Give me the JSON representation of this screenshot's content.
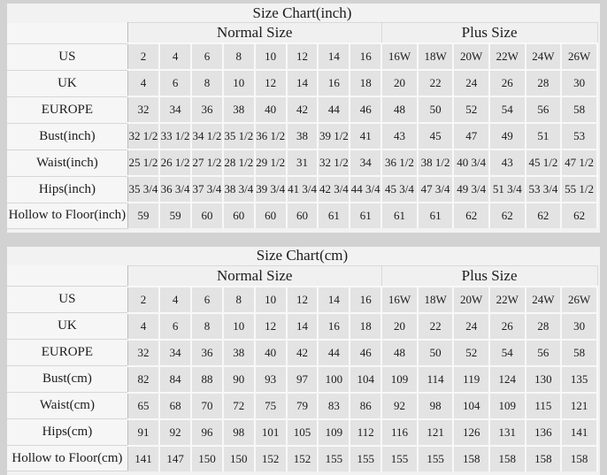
{
  "colors": {
    "page_bg": "#d2d2d2",
    "panel_bg": "#f2f2f2",
    "cell_bg": "#e3e3e3",
    "label_bg": "#f6f6f6",
    "text": "#1c1c1c"
  },
  "chart_data": [
    {
      "type": "table",
      "title": "Size Chart(inch)",
      "column_groups": [
        {
          "label": "",
          "span": 1
        },
        {
          "label": "Normal Size",
          "span": 8
        },
        {
          "label": "Plus Size",
          "span": 6
        }
      ],
      "rows": [
        {
          "label": "US",
          "values": [
            "2",
            "4",
            "6",
            "8",
            "10",
            "12",
            "14",
            "16",
            "16W",
            "18W",
            "20W",
            "22W",
            "24W",
            "26W"
          ]
        },
        {
          "label": "UK",
          "values": [
            "4",
            "6",
            "8",
            "10",
            "12",
            "14",
            "16",
            "18",
            "20",
            "22",
            "24",
            "26",
            "28",
            "30"
          ]
        },
        {
          "label": "EUROPE",
          "values": [
            "32",
            "34",
            "36",
            "38",
            "40",
            "42",
            "44",
            "46",
            "48",
            "50",
            "52",
            "54",
            "56",
            "58"
          ]
        },
        {
          "label": "Bust(inch)",
          "values": [
            "32 1/2",
            "33 1/2",
            "34 1/2",
            "35 1/2",
            "36 1/2",
            "38",
            "39 1/2",
            "41",
            "43",
            "45",
            "47",
            "49",
            "51",
            "53"
          ]
        },
        {
          "label": "Waist(inch)",
          "values": [
            "25 1/2",
            "26 1/2",
            "27 1/2",
            "28 1/2",
            "29 1/2",
            "31",
            "32 1/2",
            "34",
            "36 1/2",
            "38 1/2",
            "40 3/4",
            "43",
            "45 1/2",
            "47 1/2"
          ]
        },
        {
          "label": "Hips(inch)",
          "values": [
            "35 3/4",
            "36 3/4",
            "37 3/4",
            "38 3/4",
            "39 3/4",
            "41 3/4",
            "42 3/4",
            "44 3/4",
            "45 3/4",
            "47 3/4",
            "49 3/4",
            "51 3/4",
            "53 3/4",
            "55 1/2"
          ]
        },
        {
          "label": "Hollow to Floor(inch)",
          "values": [
            "59",
            "59",
            "60",
            "60",
            "60",
            "60",
            "61",
            "61",
            "61",
            "61",
            "62",
            "62",
            "62",
            "62"
          ]
        }
      ]
    },
    {
      "type": "table",
      "title": "Size Chart(cm)",
      "column_groups": [
        {
          "label": "",
          "span": 1
        },
        {
          "label": "Normal Size",
          "span": 8
        },
        {
          "label": "Plus Size",
          "span": 6
        }
      ],
      "rows": [
        {
          "label": "US",
          "values": [
            "2",
            "4",
            "6",
            "8",
            "10",
            "12",
            "14",
            "16",
            "16W",
            "18W",
            "20W",
            "22W",
            "24W",
            "26W"
          ]
        },
        {
          "label": "UK",
          "values": [
            "4",
            "6",
            "8",
            "10",
            "12",
            "14",
            "16",
            "18",
            "20",
            "22",
            "24",
            "26",
            "28",
            "30"
          ]
        },
        {
          "label": "EUROPE",
          "values": [
            "32",
            "34",
            "36",
            "38",
            "40",
            "42",
            "44",
            "46",
            "48",
            "50",
            "52",
            "54",
            "56",
            "58"
          ]
        },
        {
          "label": "Bust(cm)",
          "values": [
            "82",
            "84",
            "88",
            "90",
            "93",
            "97",
            "100",
            "104",
            "109",
            "114",
            "119",
            "124",
            "130",
            "135"
          ]
        },
        {
          "label": "Waist(cm)",
          "values": [
            "65",
            "68",
            "70",
            "72",
            "75",
            "79",
            "83",
            "86",
            "92",
            "98",
            "104",
            "109",
            "115",
            "121"
          ]
        },
        {
          "label": "Hips(cm)",
          "values": [
            "91",
            "92",
            "96",
            "98",
            "101",
            "105",
            "109",
            "112",
            "116",
            "121",
            "126",
            "131",
            "136",
            "141"
          ]
        },
        {
          "label": "Hollow to Floor(cm)",
          "values": [
            "141",
            "147",
            "150",
            "150",
            "152",
            "152",
            "155",
            "155",
            "155",
            "155",
            "158",
            "158",
            "158",
            "158"
          ]
        }
      ]
    }
  ]
}
